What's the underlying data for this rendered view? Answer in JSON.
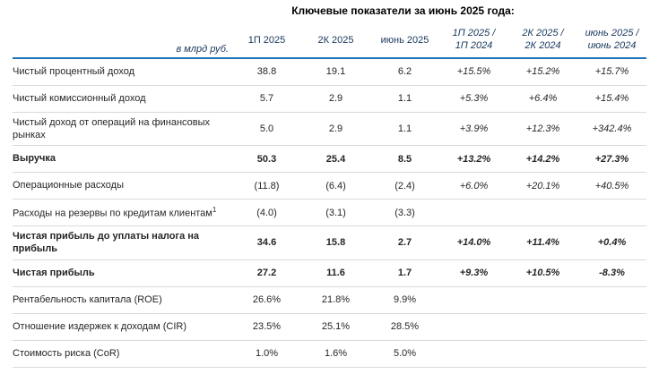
{
  "title": "Ключевые показатели за июнь 2025 года:",
  "colors": {
    "header_text": "#17375D",
    "header_rule": "#2272B9",
    "row_rule": "#D9D9D9",
    "body_text": "#262626"
  },
  "table": {
    "unit_label": "в млрд руб.",
    "period_headers": [
      "1П 2025",
      "2К 2025",
      "июнь 2025"
    ],
    "change_headers": [
      {
        "line1": "1П 2025 /",
        "line2": "1П 2024"
      },
      {
        "line1": "2К 2025 /",
        "line2": "2К 2024"
      },
      {
        "line1": "июнь 2025 /",
        "line2": "июнь 2024"
      }
    ],
    "rows": [
      {
        "label": "Чистый процентный доход",
        "bold": false,
        "values": [
          "38.8",
          "19.1",
          "6.2"
        ],
        "changes": [
          "+15.5%",
          "+15.2%",
          "+15.7%"
        ]
      },
      {
        "label": "Чистый комиссионный доход",
        "bold": false,
        "values": [
          "5.7",
          "2.9",
          "1.1"
        ],
        "changes": [
          "+5.3%",
          "+6.4%",
          "+15.4%"
        ]
      },
      {
        "label": "Чистый доход от операций на финансовых рынках",
        "bold": false,
        "values": [
          "5.0",
          "2.9",
          "1.1"
        ],
        "changes": [
          "+3.9%",
          "+12.3%",
          "+342.4%"
        ]
      },
      {
        "label": "Выручка",
        "bold": true,
        "values": [
          "50.3",
          "25.4",
          "8.5"
        ],
        "changes": [
          "+13.2%",
          "+14.2%",
          "+27.3%"
        ]
      },
      {
        "label": "Операционные расходы",
        "bold": false,
        "values": [
          "(11.8)",
          "(6.4)",
          "(2.4)"
        ],
        "changes": [
          "+6.0%",
          "+20.1%",
          "+40.5%"
        ]
      },
      {
        "label": "Расходы на резервы по кредитам клиентам",
        "sup": "1",
        "bold": false,
        "values": [
          "(4.0)",
          "(3.1)",
          "(3.3)"
        ],
        "changes": [
          "",
          "",
          ""
        ]
      },
      {
        "label": "Чистая прибыль до уплаты налога на прибыль",
        "bold": true,
        "values": [
          "34.6",
          "15.8",
          "2.7"
        ],
        "changes": [
          "+14.0%",
          "+11.4%",
          "+0.4%"
        ]
      },
      {
        "label": "Чистая прибыль",
        "bold": true,
        "values": [
          "27.2",
          "11.6",
          "1.7"
        ],
        "changes": [
          "+9.3%",
          "+10.5%",
          "-8.3%"
        ]
      },
      {
        "label": "Рентабельность капитала (ROE)",
        "bold": false,
        "values": [
          "26.6%",
          "21.8%",
          "9.9%"
        ],
        "changes": [
          "",
          "",
          ""
        ]
      },
      {
        "label": "Отношение издержек к доходам (CIR)",
        "bold": false,
        "values": [
          "23.5%",
          "25.1%",
          "28.5%"
        ],
        "changes": [
          "",
          "",
          ""
        ]
      },
      {
        "label": "Стоимость риска (CoR)",
        "bold": false,
        "values": [
          "1.0%",
          "1.6%",
          "5.0%"
        ],
        "changes": [
          "",
          "",
          ""
        ]
      }
    ]
  }
}
